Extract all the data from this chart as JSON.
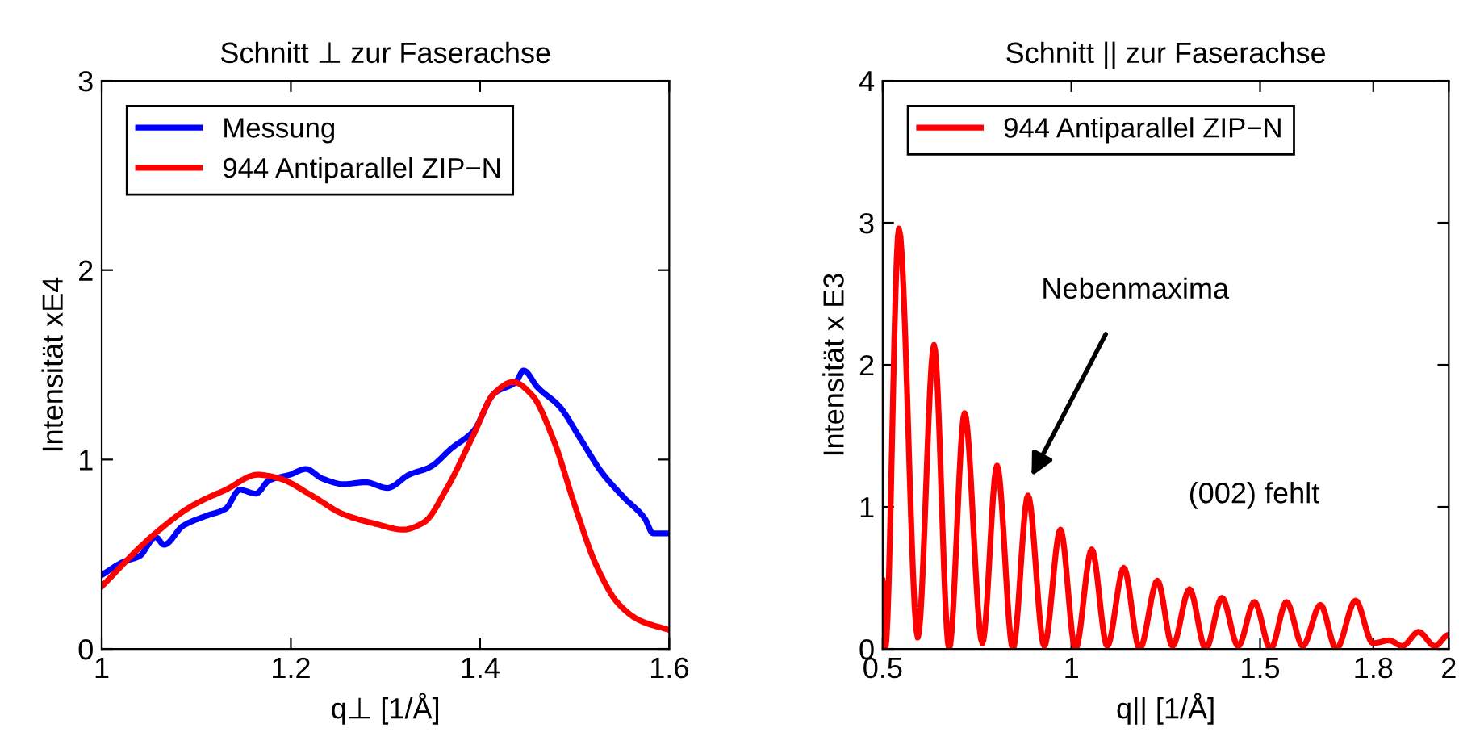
{
  "chart_data": [
    {
      "type": "line",
      "title": "Schnitt ⊥ zur Faserachse",
      "xlabel": "q⊥ [1/Å]",
      "ylabel": "Intensität xE4",
      "xlim": [
        1,
        1.6
      ],
      "xticks": [
        1,
        1.2,
        1.4,
        1.6
      ],
      "ylim": [
        0,
        3
      ],
      "yticks": [
        0,
        1,
        2,
        3
      ],
      "grid": false,
      "legend": "top left",
      "series": [
        {
          "name": "Messung",
          "color": "#0000ff",
          "x": [
            1.0,
            1.023,
            1.04,
            1.057,
            1.066,
            1.086,
            1.109,
            1.131,
            1.146,
            1.163,
            1.177,
            1.199,
            1.216,
            1.233,
            1.256,
            1.279,
            1.302,
            1.325,
            1.347,
            1.37,
            1.393,
            1.415,
            1.438,
            1.446,
            1.461,
            1.484,
            1.506,
            1.529,
            1.552,
            1.574,
            1.583,
            1.6
          ],
          "values": [
            0.39,
            0.46,
            0.49,
            0.59,
            0.55,
            0.65,
            0.7,
            0.74,
            0.84,
            0.82,
            0.89,
            0.92,
            0.95,
            0.9,
            0.87,
            0.88,
            0.85,
            0.92,
            0.96,
            1.06,
            1.15,
            1.35,
            1.41,
            1.47,
            1.38,
            1.28,
            1.11,
            0.93,
            0.8,
            0.69,
            0.61,
            0.61
          ]
        },
        {
          "name": "944 Antiparallel ZIP−N",
          "color": "#ff0000",
          "x": [
            1.0,
            1.052,
            1.097,
            1.131,
            1.165,
            1.188,
            1.222,
            1.256,
            1.29,
            1.319,
            1.341,
            1.364,
            1.393,
            1.415,
            1.435,
            1.455,
            1.478,
            1.5,
            1.523,
            1.546,
            1.569,
            1.6
          ],
          "values": [
            0.33,
            0.59,
            0.76,
            0.84,
            0.92,
            0.9,
            0.81,
            0.71,
            0.66,
            0.63,
            0.67,
            0.84,
            1.13,
            1.35,
            1.41,
            1.34,
            1.1,
            0.76,
            0.44,
            0.24,
            0.15,
            0.1
          ]
        }
      ]
    },
    {
      "type": "line",
      "title": "Schnitt || zur Faserachse",
      "xlabel": "q|| [1/Å]",
      "ylabel": "Intensität x E3",
      "xlim": [
        0.5,
        2
      ],
      "xticks": [
        0.5,
        1,
        1.5,
        1.8,
        2
      ],
      "ylim": [
        0,
        4
      ],
      "yticks": [
        0,
        1,
        2,
        3,
        4
      ],
      "grid": false,
      "legend": "top left",
      "annotations": [
        "Nebenmaxima",
        "(002) fehlt"
      ],
      "series": [
        {
          "name": "944 Antiparallel ZIP−N",
          "color": "#ff0000",
          "x": [
            0.5,
            0.507,
            0.543,
            0.593,
            0.636,
            0.676,
            0.717,
            0.764,
            0.803,
            0.845,
            0.885,
            0.928,
            0.971,
            1.011,
            1.054,
            1.095,
            1.139,
            1.181,
            1.228,
            1.268,
            1.313,
            1.356,
            1.399,
            1.442,
            1.485,
            1.528,
            1.57,
            1.613,
            1.66,
            1.702,
            1.753,
            1.799,
            1.842,
            1.877,
            1.92,
            1.963,
            2.0
          ],
          "values": [
            0.48,
            0,
            2.96,
            0.08,
            2.14,
            0,
            1.66,
            0.04,
            1.29,
            0,
            1.08,
            0.02,
            0.84,
            0,
            0.7,
            0.02,
            0.57,
            0,
            0.48,
            0.02,
            0.42,
            0,
            0.36,
            0.02,
            0.33,
            0,
            0.33,
            0.02,
            0.31,
            0,
            0.34,
            0.04,
            0.06,
            0.02,
            0.12,
            0.02,
            0.1
          ]
        }
      ]
    }
  ]
}
